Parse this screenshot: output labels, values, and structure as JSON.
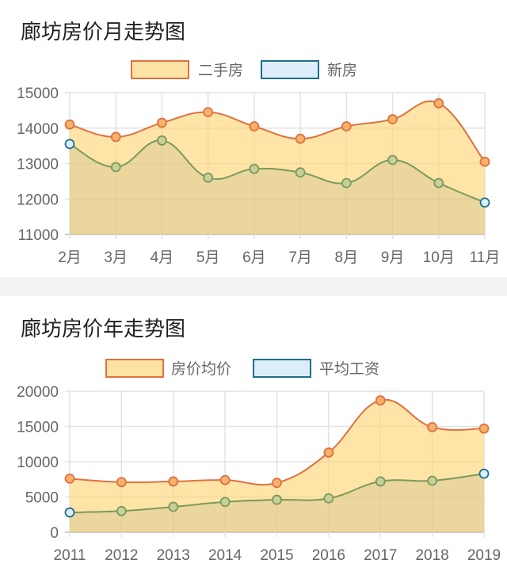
{
  "chart_data": [
    {
      "type": "area",
      "title": "廊坊房价月走势图",
      "categories": [
        "2月",
        "3月",
        "4月",
        "5月",
        "6月",
        "7月",
        "8月",
        "9月",
        "10月",
        "11月"
      ],
      "ylim": [
        11000,
        15000
      ],
      "yticks": [
        "11000",
        "12000",
        "13000",
        "14000",
        "15000"
      ],
      "grid": true,
      "legend": "top",
      "series": [
        {
          "name": "二手房",
          "values": [
            14100,
            13750,
            14150,
            14450,
            14050,
            13700,
            14050,
            14250,
            14700,
            13050
          ],
          "line": "#e07040",
          "fill": "#fde3a3"
        },
        {
          "name": "新房",
          "values": [
            13550,
            12900,
            13650,
            12600,
            12850,
            12750,
            12450,
            13100,
            12450,
            11900
          ],
          "line": "#7a9a5a",
          "fill": "#dbeef9",
          "legend_border": "#1f6f8b"
        }
      ]
    },
    {
      "type": "area",
      "title": "廊坊房价年走势图",
      "categories": [
        "2011",
        "2012",
        "2013",
        "2014",
        "2015",
        "2016",
        "2017",
        "2018",
        "2019"
      ],
      "ylim": [
        0,
        20000
      ],
      "yticks": [
        "0",
        "5000",
        "10000",
        "15000",
        "20000"
      ],
      "grid": true,
      "legend": "top",
      "series": [
        {
          "name": "房价均价",
          "values": [
            7600,
            7100,
            7200,
            7400,
            7000,
            11300,
            18700,
            14900,
            14700
          ],
          "line": "#e07040",
          "fill": "#fde3a3"
        },
        {
          "name": "平均工资",
          "values": [
            2800,
            3000,
            3600,
            4300,
            4600,
            4800,
            7200,
            7300,
            8300
          ],
          "line": "#7a9a5a",
          "fill": "#dbeef9",
          "legend_border": "#1f6f8b"
        }
      ]
    }
  ]
}
